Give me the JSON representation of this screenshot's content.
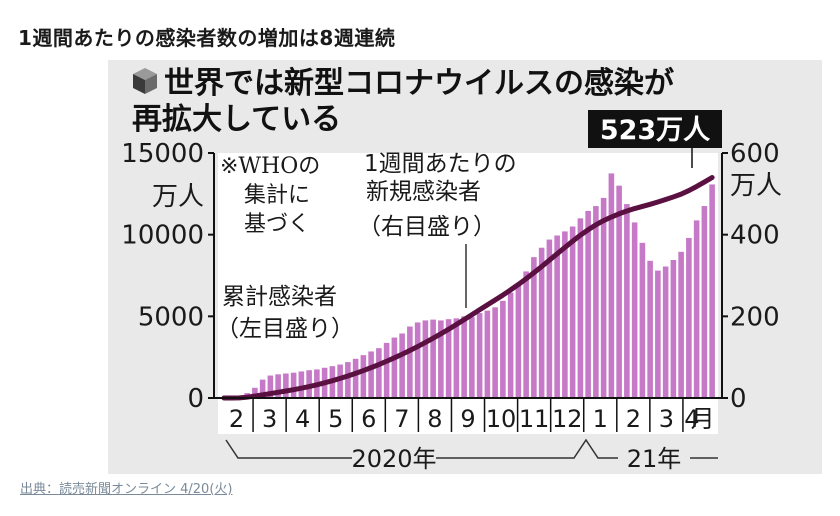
{
  "page": {
    "heading": "1週間あたりの感染者数の増加は8週連続",
    "source": "出典：読売新聞オンライン 4/20(火)"
  },
  "chart_data": {
    "type": "bar",
    "title_line1": "世界では新型コロナウイルスの感染が",
    "title_line2": "再拡大している",
    "title_icon": "cube-icon",
    "callout": "523万人",
    "note": [
      "※WHOの",
      "集計に",
      "基づく"
    ],
    "left_axis": {
      "label": "万人",
      "ticks": [
        "15000",
        "10000",
        "5000",
        "0"
      ],
      "tick_values": [
        15000,
        10000,
        5000,
        0
      ],
      "range": [
        0,
        15000
      ]
    },
    "right_axis": {
      "label": "万人",
      "ticks": [
        "600",
        "400",
        "200",
        "0"
      ],
      "tick_values": [
        600,
        400,
        200,
        0
      ],
      "range": [
        0,
        600
      ]
    },
    "months": [
      "2",
      "3",
      "4",
      "5",
      "6",
      "7",
      "8",
      "9",
      "10",
      "11",
      "12",
      "1",
      "2",
      "3",
      "4月"
    ],
    "year_labels": [
      "2020年",
      "21年"
    ],
    "weekly_series": {
      "name_lines": [
        "1週間あたりの",
        "新規感染者",
        "（右目盛り）"
      ],
      "axis": "right",
      "color": "#c679c6",
      "values": [
        2,
        3,
        6,
        12,
        25,
        45,
        55,
        58,
        60,
        62,
        65,
        68,
        70,
        74,
        78,
        82,
        88,
        96,
        105,
        114,
        122,
        135,
        148,
        158,
        175,
        185,
        190,
        192,
        190,
        193,
        195,
        200,
        198,
        208,
        214,
        222,
        238,
        258,
        278,
        310,
        345,
        368,
        388,
        398,
        408,
        420,
        440,
        458,
        470,
        490,
        550,
        520,
        475,
        430,
        380,
        336,
        312,
        322,
        338,
        358,
        392,
        435,
        470,
        523
      ]
    },
    "cumulative_series": {
      "name_lines": [
        "累計感染者",
        "（左目盛り）"
      ],
      "axis": "left",
      "color": "#5a1040",
      "values": [
        0,
        0,
        10,
        50,
        120,
        190,
        270,
        350,
        430,
        510,
        600,
        700,
        810,
        930,
        1060,
        1200,
        1350,
        1510,
        1680,
        1860,
        2050,
        2250,
        2460,
        2680,
        2910,
        3150,
        3400,
        3660,
        3930,
        4210,
        4500,
        4800,
        5100,
        5400,
        5700,
        6000,
        6300,
        6620,
        6950,
        7300,
        7670,
        8050,
        8440,
        8830,
        9220,
        9600,
        9970,
        10300,
        10600,
        10860,
        11080,
        11280,
        11450,
        11600,
        11730,
        11860,
        12000,
        12150,
        12310,
        12480,
        12700,
        12950,
        13220,
        13500
      ]
    },
    "grid": false,
    "legend": "inline annotations"
  }
}
